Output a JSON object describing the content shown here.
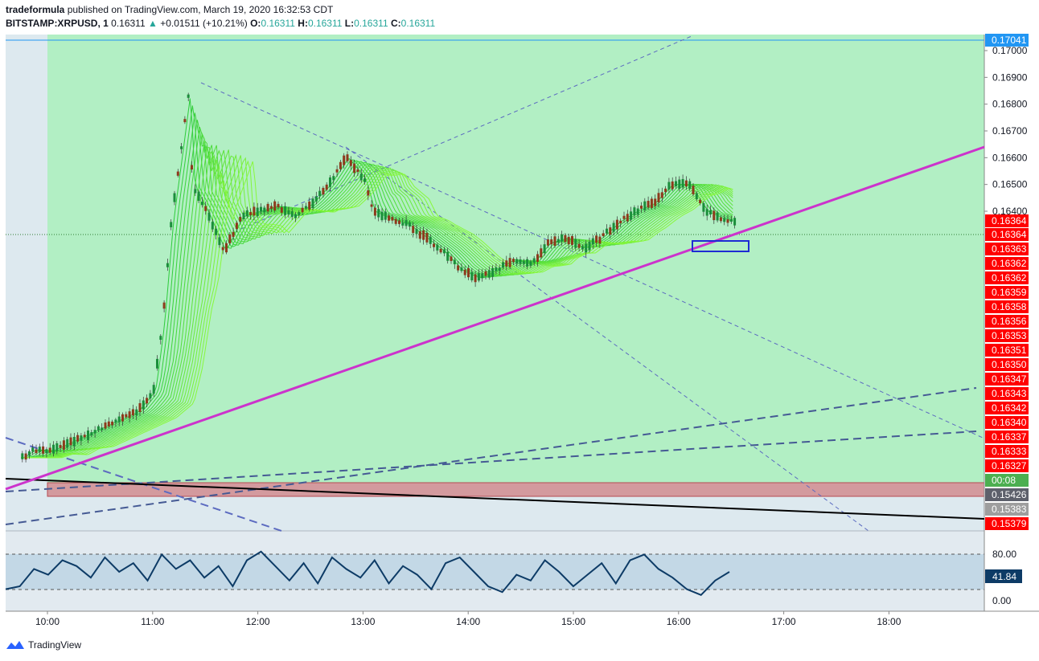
{
  "header": {
    "publisher": "tradeformula",
    "published_text": "published on TradingView.com, March 19, 2020 16:32:53 CDT",
    "symbol": "BITSTAMP:XRPUSD, 1",
    "last": "0.16311",
    "change": "+0.01511 (+10.21%)",
    "o_label": "O:",
    "o": "0.16311",
    "h_label": "H:",
    "h": "0.16311",
    "l_label": "L:",
    "l": "0.16311",
    "c_label": "C:",
    "c": "0.16311"
  },
  "brand": "TradingView",
  "colors": {
    "green_zone": "#b2efc4",
    "red_zone": "#d39a9e",
    "pre_zone": "#dde9ef",
    "trendline": "#cc33cc",
    "red_badge": "#ff0000",
    "rsi_line": "#0d3b66",
    "rsi_band": "#c3d8e6"
  },
  "chart_data": {
    "type": "candlestick",
    "x_ticks": [
      "10:00",
      "11:00",
      "12:00",
      "13:00",
      "14:00",
      "15:00",
      "16:00",
      "17:00",
      "18:00"
    ],
    "y_ticks": [
      "0.17000",
      "0.16900",
      "0.16800",
      "0.16700",
      "0.16600",
      "0.16500",
      "0.16400"
    ],
    "price_badges": [
      {
        "text": "0.17041",
        "bg": "#2196f3"
      },
      {
        "text": "0.16364",
        "bg": "#ff0000"
      },
      {
        "text": "0.16364",
        "bg": "#ff0000"
      },
      {
        "text": "0.16363",
        "bg": "#ff0000"
      },
      {
        "text": "0.16362",
        "bg": "#ff0000"
      },
      {
        "text": "0.16362",
        "bg": "#ff0000"
      },
      {
        "text": "0.16359",
        "bg": "#ff0000"
      },
      {
        "text": "0.16358",
        "bg": "#ff0000"
      },
      {
        "text": "0.16356",
        "bg": "#ff0000"
      },
      {
        "text": "0.16353",
        "bg": "#ff0000"
      },
      {
        "text": "0.16351",
        "bg": "#ff0000"
      },
      {
        "text": "0.16350",
        "bg": "#ff0000"
      },
      {
        "text": "0.16347",
        "bg": "#ff0000"
      },
      {
        "text": "0.16343",
        "bg": "#ff0000"
      },
      {
        "text": "0.16342",
        "bg": "#ff0000"
      },
      {
        "text": "0.16340",
        "bg": "#ff0000"
      },
      {
        "text": "0.16337",
        "bg": "#ff0000"
      },
      {
        "text": "0.16333",
        "bg": "#ff0000"
      },
      {
        "text": "0.16327",
        "bg": "#ff0000"
      },
      {
        "text": "00:08",
        "bg": "#4caf50"
      },
      {
        "text": "0.15426",
        "bg": "#5d606b"
      },
      {
        "text": "0.15383",
        "bg": "#9e9e9e"
      },
      {
        "text": "0.15379",
        "bg": "#ff0000"
      }
    ],
    "price_path": [
      [
        "9:45",
        0.1548
      ],
      [
        "9:52",
        0.1551
      ],
      [
        "10:00",
        0.155
      ],
      [
        "10:10",
        0.1553
      ],
      [
        "10:20",
        0.1556
      ],
      [
        "10:30",
        0.1559
      ],
      [
        "10:40",
        0.1562
      ],
      [
        "10:50",
        0.1565
      ],
      [
        "11:00",
        0.1573
      ],
      [
        "11:05",
        0.1598
      ],
      [
        "11:10",
        0.1636
      ],
      [
        "11:15",
        0.166
      ],
      [
        "11:20",
        0.1685
      ],
      [
        "11:22",
        0.165
      ],
      [
        "11:30",
        0.164
      ],
      [
        "11:40",
        0.1625
      ],
      [
        "11:50",
        0.1638
      ],
      [
        "12:00",
        0.164
      ],
      [
        "12:10",
        0.1642
      ],
      [
        "12:20",
        0.1638
      ],
      [
        "12:30",
        0.1643
      ],
      [
        "12:40",
        0.165
      ],
      [
        "12:50",
        0.166
      ],
      [
        "13:00",
        0.1652
      ],
      [
        "13:05",
        0.164
      ],
      [
        "13:15",
        0.1637
      ],
      [
        "13:25",
        0.1635
      ],
      [
        "13:35",
        0.163
      ],
      [
        "13:45",
        0.1625
      ],
      [
        "13:55",
        0.1618
      ],
      [
        "14:05",
        0.1615
      ],
      [
        "14:15",
        0.1618
      ],
      [
        "14:25",
        0.1622
      ],
      [
        "14:35",
        0.162
      ],
      [
        "14:45",
        0.1628
      ],
      [
        "14:55",
        0.163
      ],
      [
        "15:05",
        0.1626
      ],
      [
        "15:15",
        0.163
      ],
      [
        "15:25",
        0.1636
      ],
      [
        "15:35",
        0.164
      ],
      [
        "15:45",
        0.1643
      ],
      [
        "15:55",
        0.165
      ],
      [
        "16:05",
        0.165
      ],
      [
        "16:15",
        0.164
      ],
      [
        "16:25",
        0.1637
      ],
      [
        "16:32",
        0.1636
      ]
    ],
    "rsi": {
      "levels": [
        "80.00",
        "0.00"
      ],
      "value_badge": "41.84",
      "values": [
        20,
        25,
        55,
        45,
        70,
        60,
        40,
        75,
        50,
        65,
        35,
        80,
        55,
        70,
        40,
        60,
        25,
        70,
        85,
        60,
        35,
        65,
        30,
        75,
        55,
        40,
        70,
        30,
        60,
        45,
        20,
        65,
        75,
        50,
        25,
        15,
        45,
        35,
        70,
        50,
        25,
        45,
        65,
        30,
        70,
        80,
        55,
        40,
        20,
        10,
        35,
        50
      ]
    }
  }
}
